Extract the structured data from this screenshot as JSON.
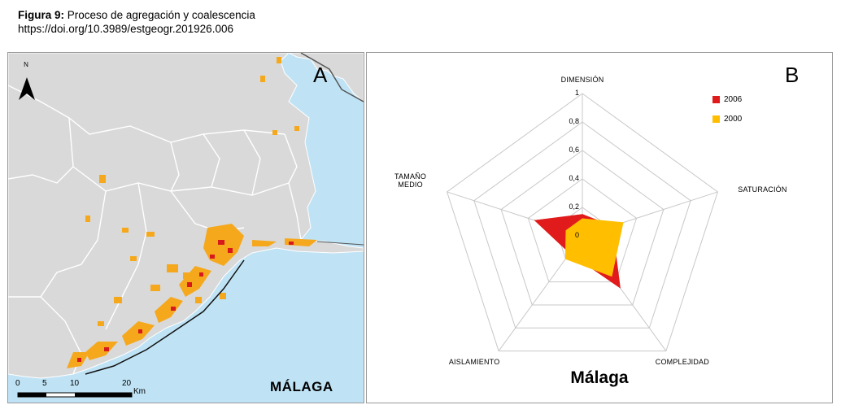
{
  "caption": {
    "label": "Figura 9:",
    "title": "Proceso de agregación y coalescencia",
    "doi": "https://doi.org/10.3989/estgeogr.201926.006"
  },
  "panel_a": {
    "letter": "A",
    "north_label": "N",
    "place_label": "MÁLAGA",
    "scale": {
      "t0": "0",
      "t5": "5",
      "t10": "10",
      "t20": "20",
      "unit": "Km"
    },
    "colors": {
      "land": "#d9d9d9",
      "sea": "#bfe3f5",
      "urban_2000": "#f5a81c",
      "urban_2006": "#d7191c"
    }
  },
  "panel_b": {
    "letter": "B",
    "title": "Málaga",
    "legend": [
      {
        "label": "2006",
        "color": "#e11b1b"
      },
      {
        "label": "2000",
        "color": "#ffbf00"
      }
    ]
  },
  "chart_data": {
    "type": "radar",
    "title": "Málaga",
    "axes": [
      "DIMENSIÓN",
      "SATURACIÓN",
      "COMPLEJIDAD",
      "AISLAMIENTO",
      "TAMAÑO MEDIO"
    ],
    "ticks": [
      "0",
      "0,2",
      "0,4",
      "0,6",
      "0,8",
      "1"
    ],
    "range": [
      0,
      1
    ],
    "series": [
      {
        "name": "2006",
        "color": "#e11b1b",
        "values": [
          0.15,
          0.22,
          0.45,
          0.15,
          0.35
        ]
      },
      {
        "name": "2000",
        "color": "#ffbf00",
        "values": [
          0.12,
          0.3,
          0.35,
          0.2,
          0.12
        ]
      }
    ]
  }
}
